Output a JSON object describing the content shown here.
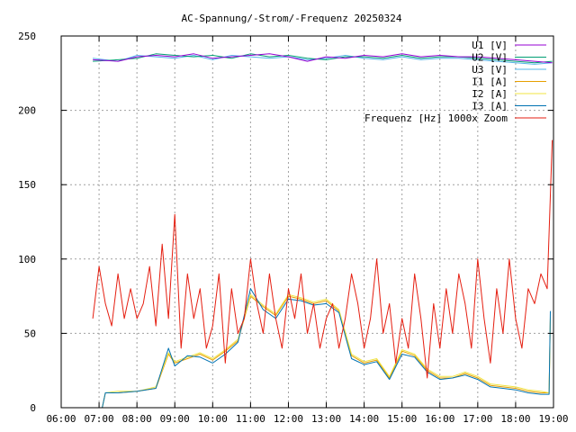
{
  "chart_data": {
    "type": "line",
    "title": "AC-Spannung/-Strom/-Frequenz 20250324",
    "xlabel": "",
    "ylabel": "",
    "ylim": [
      0,
      250
    ],
    "yticks": [
      0,
      50,
      100,
      150,
      200,
      250
    ],
    "xlim": [
      "06:00",
      "19:00"
    ],
    "xticks": [
      "06:00",
      "07:00",
      "08:00",
      "09:00",
      "10:00",
      "11:00",
      "12:00",
      "13:00",
      "14:00",
      "15:00",
      "16:00",
      "17:00",
      "18:00",
      "19:00"
    ],
    "grid": true,
    "legend_position": "top-right",
    "colors": {
      "U1": "#9400d3",
      "U2": "#009e73",
      "U3": "#56b4e9",
      "I1": "#e69f00",
      "I2": "#f0e442",
      "I3": "#0072b2",
      "F": "#e51e10"
    },
    "series": [
      {
        "key": "U1",
        "name": "U1 [V]",
        "x": [
          "06:50",
          "07:30",
          "08:00",
          "08:30",
          "09:00",
          "09:30",
          "10:00",
          "10:30",
          "11:00",
          "11:30",
          "12:00",
          "12:30",
          "13:00",
          "13:30",
          "14:00",
          "14:30",
          "15:00",
          "15:30",
          "16:00",
          "16:30",
          "17:00",
          "17:30",
          "18:00",
          "18:30",
          "18:58"
        ],
        "values": [
          234,
          233,
          236,
          237,
          236,
          238,
          235,
          236,
          237,
          238,
          236,
          233,
          236,
          235,
          237,
          236,
          238,
          236,
          237,
          236,
          236,
          235,
          234,
          233,
          232
        ]
      },
      {
        "key": "U2",
        "name": "U2 [V]",
        "x": [
          "06:50",
          "07:30",
          "08:00",
          "08:30",
          "09:00",
          "09:30",
          "10:00",
          "10:30",
          "11:00",
          "11:30",
          "12:00",
          "12:30",
          "13:00",
          "13:30",
          "14:00",
          "14:30",
          "15:00",
          "15:30",
          "16:00",
          "16:30",
          "17:00",
          "17:30",
          "18:00",
          "18:30",
          "18:58"
        ],
        "values": [
          233,
          234,
          235,
          238,
          237,
          236,
          237,
          235,
          238,
          236,
          237,
          235,
          234,
          236,
          236,
          235,
          237,
          235,
          236,
          236,
          235,
          234,
          233,
          232,
          233
        ]
      },
      {
        "key": "U3",
        "name": "U3 [V]",
        "x": [
          "06:50",
          "07:30",
          "08:00",
          "08:30",
          "09:00",
          "09:30",
          "10:00",
          "10:30",
          "11:00",
          "11:30",
          "12:00",
          "12:30",
          "13:00",
          "13:30",
          "14:00",
          "14:30",
          "15:00",
          "15:30",
          "16:00",
          "16:30",
          "17:00",
          "17:30",
          "18:00",
          "18:30",
          "18:58"
        ],
        "values": [
          235,
          233,
          237,
          236,
          235,
          237,
          234,
          237,
          236,
          235,
          236,
          234,
          235,
          237,
          235,
          234,
          236,
          234,
          235,
          235,
          234,
          233,
          232,
          231,
          232
        ]
      },
      {
        "key": "I1",
        "name": "I1 [A]",
        "x": [
          "07:05",
          "07:10",
          "07:30",
          "08:00",
          "08:30",
          "08:50",
          "09:00",
          "09:20",
          "09:40",
          "10:00",
          "10:20",
          "10:40",
          "11:00",
          "11:20",
          "11:40",
          "12:00",
          "12:20",
          "12:40",
          "13:00",
          "13:20",
          "13:40",
          "14:00",
          "14:20",
          "14:40",
          "15:00",
          "15:20",
          "15:40",
          "16:00",
          "16:20",
          "16:40",
          "17:00",
          "17:20",
          "17:40",
          "18:00",
          "18:20",
          "18:40",
          "18:53",
          "18:55"
        ],
        "values": [
          0,
          10,
          10,
          11,
          13,
          36,
          30,
          33,
          36,
          32,
          38,
          45,
          75,
          68,
          62,
          75,
          73,
          70,
          72,
          65,
          35,
          30,
          32,
          20,
          38,
          35,
          25,
          20,
          20,
          23,
          20,
          15,
          14,
          13,
          11,
          10,
          10,
          60
        ]
      },
      {
        "key": "I2",
        "name": "I2 [A]",
        "x": [
          "07:05",
          "07:10",
          "07:30",
          "08:00",
          "08:30",
          "08:50",
          "09:00",
          "09:20",
          "09:40",
          "10:00",
          "10:20",
          "10:40",
          "11:00",
          "11:20",
          "11:40",
          "12:00",
          "12:20",
          "12:40",
          "13:00",
          "13:20",
          "13:40",
          "14:00",
          "14:20",
          "14:40",
          "15:00",
          "15:20",
          "15:40",
          "16:00",
          "16:20",
          "16:40",
          "17:00",
          "17:20",
          "17:40",
          "18:00",
          "18:20",
          "18:40",
          "18:53",
          "18:55"
        ],
        "values": [
          0,
          10,
          11,
          11,
          14,
          37,
          31,
          34,
          37,
          33,
          39,
          46,
          76,
          69,
          63,
          76,
          74,
          71,
          73,
          66,
          36,
          31,
          33,
          21,
          39,
          36,
          26,
          21,
          21,
          24,
          21,
          16,
          15,
          14,
          12,
          11,
          10,
          61
        ]
      },
      {
        "key": "I3",
        "name": "I3 [A]",
        "x": [
          "07:05",
          "07:10",
          "07:30",
          "08:00",
          "08:30",
          "08:50",
          "09:00",
          "09:20",
          "09:40",
          "10:00",
          "10:20",
          "10:40",
          "11:00",
          "11:20",
          "11:40",
          "12:00",
          "12:20",
          "12:40",
          "13:00",
          "13:20",
          "13:40",
          "14:00",
          "14:20",
          "14:40",
          "15:00",
          "15:20",
          "15:40",
          "16:00",
          "16:20",
          "16:40",
          "17:00",
          "17:20",
          "17:40",
          "18:00",
          "18:20",
          "18:40",
          "18:53",
          "18:55"
        ],
        "values": [
          0,
          10,
          10,
          11,
          13,
          40,
          28,
          35,
          34,
          30,
          36,
          44,
          80,
          66,
          60,
          73,
          72,
          69,
          70,
          64,
          33,
          29,
          31,
          19,
          36,
          34,
          24,
          19,
          20,
          22,
          19,
          14,
          13,
          12,
          10,
          9,
          9,
          65
        ]
      },
      {
        "key": "F",
        "name": "Frequenz [Hz] 1000x Zoom",
        "x": [
          "06:50",
          "07:00",
          "07:10",
          "07:20",
          "07:30",
          "07:40",
          "07:50",
          "08:00",
          "08:10",
          "08:20",
          "08:30",
          "08:40",
          "08:50",
          "09:00",
          "09:10",
          "09:20",
          "09:30",
          "09:40",
          "09:50",
          "10:00",
          "10:10",
          "10:20",
          "10:30",
          "10:40",
          "10:50",
          "11:00",
          "11:10",
          "11:20",
          "11:30",
          "11:40",
          "11:50",
          "12:00",
          "12:10",
          "12:20",
          "12:30",
          "12:40",
          "12:50",
          "13:00",
          "13:10",
          "13:20",
          "13:30",
          "13:40",
          "13:50",
          "14:00",
          "14:10",
          "14:20",
          "14:30",
          "14:40",
          "14:50",
          "15:00",
          "15:10",
          "15:20",
          "15:30",
          "15:40",
          "15:50",
          "16:00",
          "16:10",
          "16:20",
          "16:30",
          "16:40",
          "16:50",
          "17:00",
          "17:10",
          "17:20",
          "17:30",
          "17:40",
          "17:50",
          "18:00",
          "18:10",
          "18:20",
          "18:30",
          "18:40",
          "18:50",
          "18:58"
        ],
        "values": [
          60,
          95,
          70,
          55,
          90,
          60,
          80,
          60,
          70,
          95,
          55,
          110,
          60,
          130,
          40,
          90,
          60,
          80,
          40,
          55,
          90,
          30,
          80,
          50,
          60,
          100,
          70,
          50,
          90,
          60,
          40,
          80,
          60,
          90,
          50,
          70,
          40,
          60,
          70,
          40,
          60,
          90,
          70,
          40,
          60,
          100,
          50,
          70,
          30,
          60,
          40,
          90,
          60,
          20,
          70,
          40,
          80,
          50,
          90,
          70,
          40,
          100,
          60,
          30,
          80,
          50,
          100,
          60,
          40,
          80,
          70,
          90,
          80,
          180
        ]
      }
    ]
  }
}
